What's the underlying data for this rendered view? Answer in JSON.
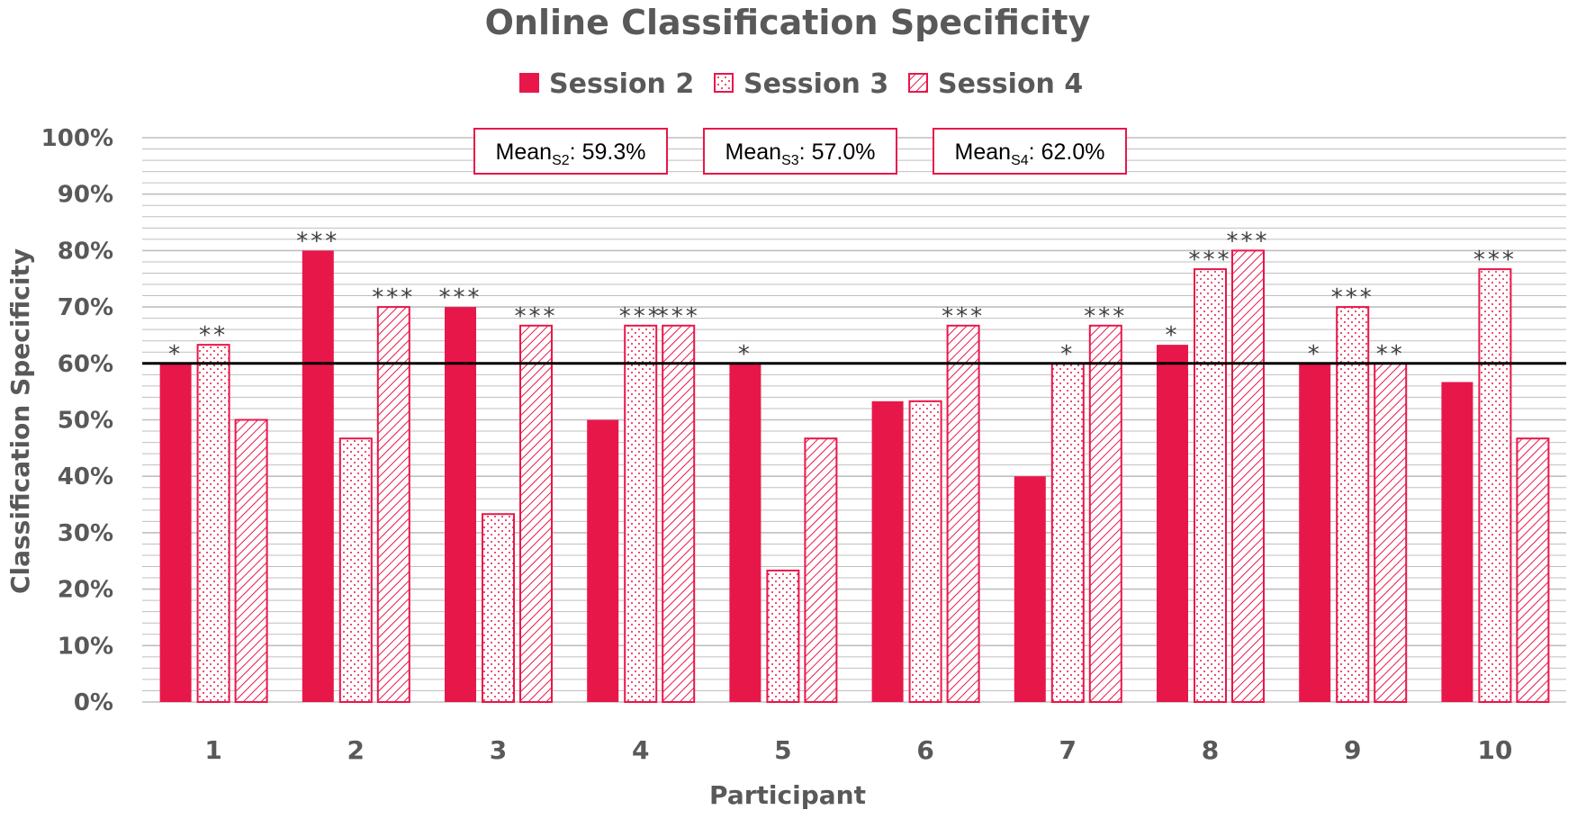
{
  "chart_data": {
    "type": "bar",
    "title": "Online Classification Specificity",
    "xlabel": "Participant",
    "ylabel": "Classification Specificity",
    "categories": [
      "1",
      "2",
      "3",
      "4",
      "5",
      "6",
      "7",
      "8",
      "9",
      "10"
    ],
    "ylim": [
      0,
      100
    ],
    "y_ticks": [
      "0%",
      "10%",
      "20%",
      "30%",
      "40%",
      "50%",
      "60%",
      "70%",
      "80%",
      "90%",
      "100%"
    ],
    "grid": true,
    "legend_position": "top-center",
    "reference_line": 60,
    "series": [
      {
        "name": "Session 2",
        "pattern": "solid",
        "values": [
          60,
          80,
          70,
          50,
          60,
          53.3,
          40,
          63.3,
          60,
          56.7
        ],
        "significance": [
          "*",
          "***",
          "***",
          "",
          "*",
          "",
          "",
          "*",
          "*",
          ""
        ]
      },
      {
        "name": "Session 3",
        "pattern": "dotted",
        "values": [
          63.3,
          46.7,
          33.3,
          66.7,
          23.3,
          53.3,
          60,
          76.7,
          70,
          76.7
        ],
        "significance": [
          "**",
          "",
          "",
          "***",
          "",
          "",
          "*",
          "***",
          "***",
          "***"
        ]
      },
      {
        "name": "Session 4",
        "pattern": "hatched",
        "values": [
          50,
          70,
          66.7,
          66.7,
          46.7,
          66.7,
          66.7,
          80,
          60,
          46.7
        ],
        "significance": [
          "",
          "***",
          "***",
          "***",
          "",
          "***",
          "***",
          "***",
          "**",
          ""
        ]
      }
    ],
    "annotations": [
      {
        "label": "Mean",
        "sub": "S2",
        "value": ": 59.3%"
      },
      {
        "label": "Mean",
        "sub": "S3",
        "value": ": 57.0%"
      },
      {
        "label": "Mean",
        "sub": "S4",
        "value": ": 62.0%"
      }
    ]
  },
  "colors": {
    "bar": "#e8174a",
    "text": "#595959",
    "grid": "#bfbfbf",
    "reference": "#000000"
  }
}
